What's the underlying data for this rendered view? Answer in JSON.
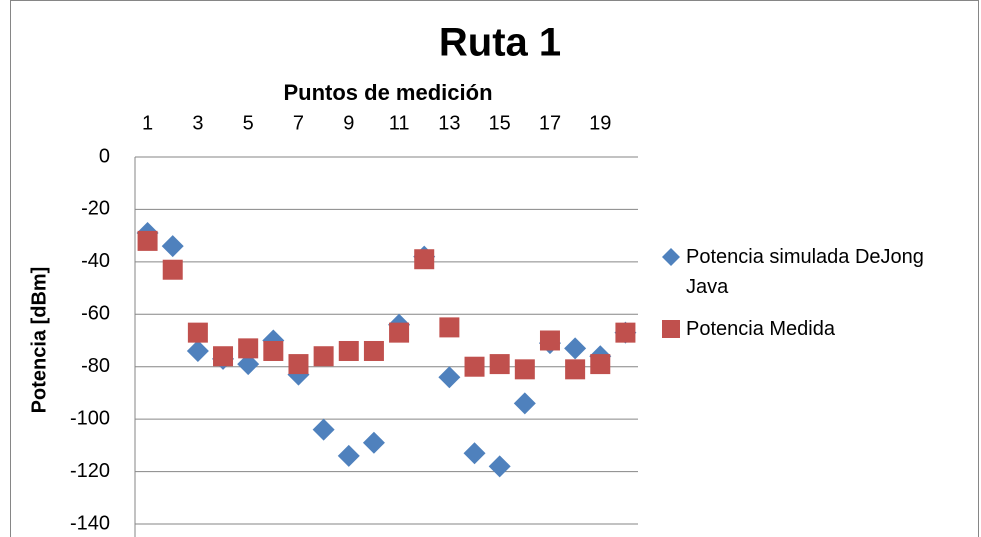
{
  "chart_data": {
    "type": "scatter",
    "title": "Ruta 1",
    "x_label": "Puntos de medición",
    "y_label": "Potencia [dBm]",
    "categories": [
      1,
      null,
      3,
      null,
      5,
      null,
      7,
      null,
      9,
      null,
      11,
      null,
      13,
      null,
      15,
      null,
      17,
      null,
      19,
      null
    ],
    "series": [
      {
        "name": "Potencia simulada DeJong Java",
        "color": "#4f81bd",
        "marker": "diamond",
        "values": [
          -29,
          -34,
          -74,
          -77,
          -79,
          -70,
          -83,
          -104,
          -114,
          -109,
          -64,
          -38,
          -84,
          -113,
          -118,
          -94,
          -71,
          -73,
          -76,
          -67
        ]
      },
      {
        "name": "Potencia Medida",
        "color": "#c0504d",
        "marker": "square",
        "values": [
          -32,
          -43,
          -67,
          -76,
          -73,
          -74,
          -79,
          -76,
          -74,
          -74,
          -67,
          -39,
          -65,
          -80,
          -79,
          -81,
          -70,
          -81,
          -79,
          -67
        ]
      }
    ],
    "ylim": [
      -140,
      0
    ],
    "yticks": [
      0,
      -20,
      -40,
      -60,
      -80,
      -100,
      -120,
      -140
    ],
    "grid": true,
    "legend": "right"
  }
}
